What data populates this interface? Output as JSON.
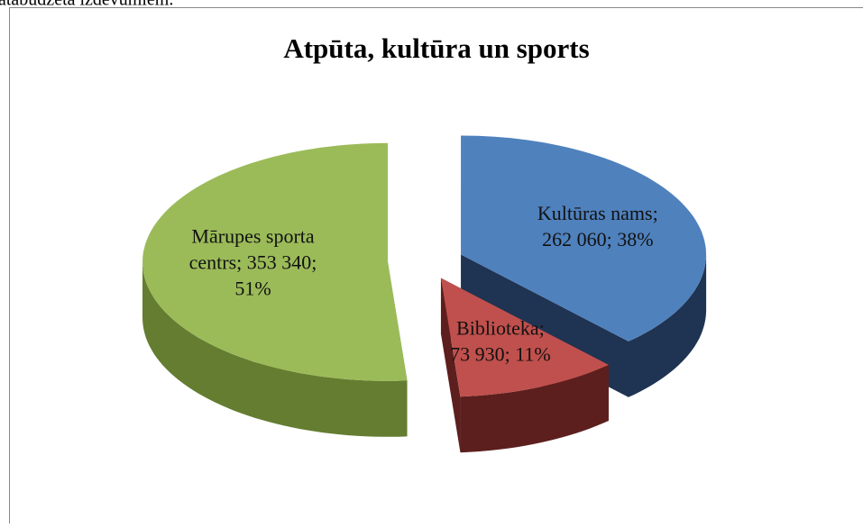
{
  "page_text": "atabudžeta izdevumiem.",
  "chart_data": {
    "type": "pie3d",
    "title": "Atpūta, kultūra un sports",
    "categories": [
      "Kultūras nams",
      "Biblioteka",
      "Mārupes sporta centrs"
    ],
    "values": [
      262060,
      73930,
      353340
    ],
    "data_labels": [
      [
        "Kultūras nams;",
        "262 060; 38%"
      ],
      [
        "Biblioteka;",
        "73 930; 11%"
      ],
      [
        "Mārupes sporta",
        "centrs; 353 340;",
        "51%"
      ]
    ],
    "colors": [
      "#4f81bd",
      "#c0504d",
      "#9bbb59"
    ],
    "side_colors": [
      "#1f3352",
      "#5c1f1e",
      "#647d30"
    ]
  }
}
